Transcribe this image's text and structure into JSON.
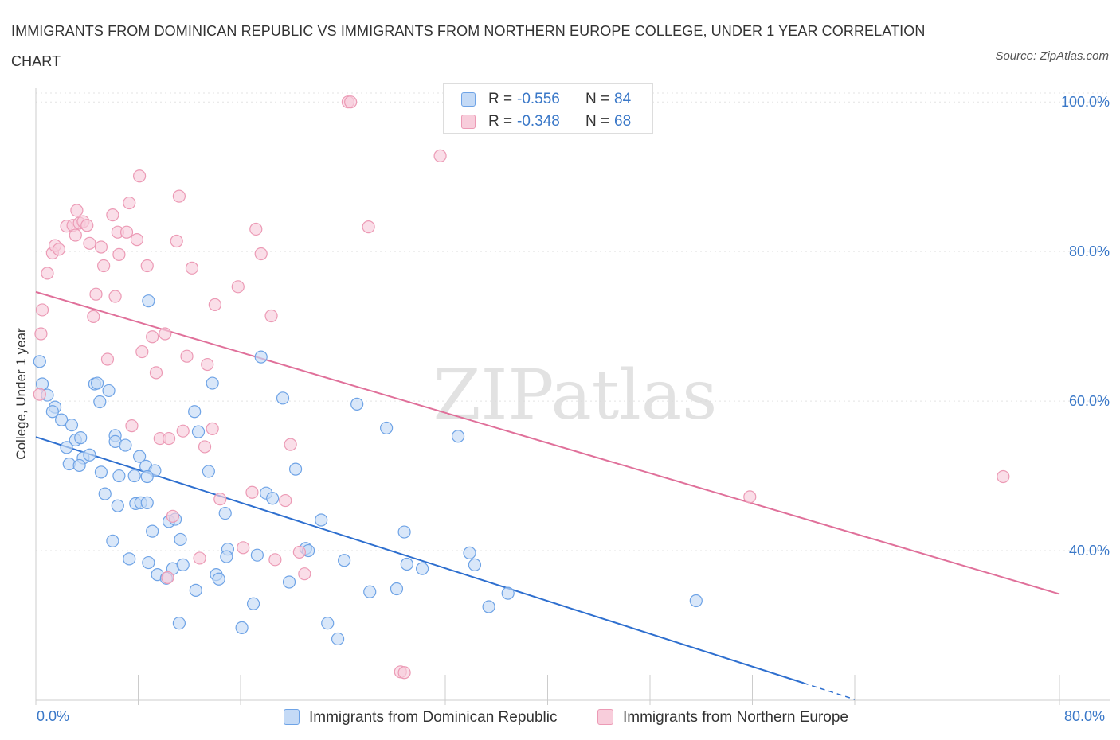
{
  "chart_data": {
    "type": "scatter",
    "title": "IMMIGRANTS FROM DOMINICAN REPUBLIC VS IMMIGRANTS FROM NORTHERN EUROPE COLLEGE, UNDER 1 YEAR CORRELATION CHART",
    "source": "Source: ZipAtlas.com",
    "watermark": "ZIPatlas",
    "ylabel": "College, Under 1 year",
    "xlabel": "",
    "xlim": [
      0,
      80
    ],
    "ylim": [
      20,
      103
    ],
    "x_tick_labels": [
      "0.0%",
      "80.0%"
    ],
    "y_ticks": [
      {
        "value": 40,
        "label": "40.0%"
      },
      {
        "value": 60,
        "label": "60.0%"
      },
      {
        "value": 80,
        "label": "80.0%"
      },
      {
        "value": 100,
        "label": "100.0%"
      }
    ],
    "grid": true,
    "legend_position": "bottom-center",
    "series": [
      {
        "name": "Immigrants from Dominican Republic",
        "color": "#6ea3e6",
        "fill": "#c4daf6",
        "line_color": "#2e6fcf",
        "R": "-0.556",
        "N": "84",
        "trend": {
          "x0": 0,
          "y0": 55.2,
          "x1": 60,
          "y1": 22.3,
          "dash_to": 64
        },
        "points": [
          [
            0.3,
            65.3
          ],
          [
            0.5,
            62.3
          ],
          [
            0.9,
            60.8
          ],
          [
            1.5,
            59.2
          ],
          [
            1.3,
            58.6
          ],
          [
            2.0,
            57.5
          ],
          [
            2.8,
            56.8
          ],
          [
            3.1,
            54.8
          ],
          [
            3.5,
            55.1
          ],
          [
            2.4,
            53.8
          ],
          [
            3.7,
            52.4
          ],
          [
            4.2,
            52.8
          ],
          [
            2.6,
            51.6
          ],
          [
            3.4,
            51.4
          ],
          [
            4.6,
            62.3
          ],
          [
            4.8,
            62.4
          ],
          [
            5.0,
            59.9
          ],
          [
            5.7,
            61.4
          ],
          [
            5.1,
            50.5
          ],
          [
            6.2,
            55.4
          ],
          [
            6.2,
            54.6
          ],
          [
            6.5,
            50.0
          ],
          [
            7.0,
            54.1
          ],
          [
            8.1,
            52.6
          ],
          [
            8.6,
            51.3
          ],
          [
            9.3,
            50.7
          ],
          [
            8.7,
            49.9
          ],
          [
            5.4,
            47.6
          ],
          [
            6.4,
            46.0
          ],
          [
            7.7,
            50.0
          ],
          [
            7.8,
            46.3
          ],
          [
            8.2,
            46.4
          ],
          [
            8.7,
            46.4
          ],
          [
            9.1,
            42.6
          ],
          [
            10.4,
            43.9
          ],
          [
            10.9,
            44.2
          ],
          [
            11.3,
            41.5
          ],
          [
            12.4,
            58.6
          ],
          [
            12.7,
            55.9
          ],
          [
            13.5,
            50.6
          ],
          [
            13.8,
            62.4
          ],
          [
            14.8,
            45.0
          ],
          [
            15.0,
            40.2
          ],
          [
            14.9,
            39.2
          ],
          [
            6.0,
            41.3
          ],
          [
            7.3,
            38.9
          ],
          [
            8.8,
            38.4
          ],
          [
            9.5,
            36.8
          ],
          [
            10.2,
            36.3
          ],
          [
            10.7,
            37.6
          ],
          [
            11.5,
            38.1
          ],
          [
            12.5,
            34.7
          ],
          [
            11.2,
            30.3
          ],
          [
            14.1,
            36.8
          ],
          [
            14.3,
            36.2
          ],
          [
            16.1,
            29.7
          ],
          [
            17.0,
            32.9
          ],
          [
            17.3,
            39.4
          ],
          [
            18.0,
            47.7
          ],
          [
            18.5,
            47.0
          ],
          [
            19.3,
            60.4
          ],
          [
            19.8,
            35.8
          ],
          [
            20.3,
            50.9
          ],
          [
            21.1,
            40.3
          ],
          [
            21.3,
            40.0
          ],
          [
            22.3,
            44.1
          ],
          [
            22.8,
            30.3
          ],
          [
            23.6,
            28.2
          ],
          [
            24.1,
            38.7
          ],
          [
            25.1,
            59.6
          ],
          [
            26.1,
            34.5
          ],
          [
            27.4,
            56.4
          ],
          [
            28.2,
            34.9
          ],
          [
            28.8,
            42.5
          ],
          [
            29.0,
            38.2
          ],
          [
            30.2,
            37.6
          ],
          [
            33.0,
            55.3
          ],
          [
            33.9,
            39.7
          ],
          [
            34.3,
            38.1
          ],
          [
            35.4,
            32.5
          ],
          [
            36.9,
            34.3
          ],
          [
            51.6,
            33.3
          ],
          [
            8.8,
            73.4
          ],
          [
            17.6,
            65.9
          ]
        ]
      },
      {
        "name": "Immigrants from Northern Europe",
        "color": "#ec9ab5",
        "fill": "#f8cddb",
        "line_color": "#e0709a",
        "R": "-0.348",
        "N": "68",
        "trend": {
          "x0": 0,
          "y0": 74.6,
          "x1": 80,
          "y1": 34.2
        },
        "points": [
          [
            0.3,
            60.9
          ],
          [
            0.4,
            69.0
          ],
          [
            0.5,
            72.2
          ],
          [
            0.9,
            77.1
          ],
          [
            1.3,
            79.8
          ],
          [
            1.5,
            80.8
          ],
          [
            1.8,
            80.3
          ],
          [
            2.4,
            83.4
          ],
          [
            2.9,
            83.5
          ],
          [
            3.1,
            82.2
          ],
          [
            3.2,
            85.5
          ],
          [
            3.4,
            83.8
          ],
          [
            3.7,
            84.0
          ],
          [
            4.0,
            83.5
          ],
          [
            4.2,
            81.1
          ],
          [
            4.5,
            71.3
          ],
          [
            4.7,
            74.3
          ],
          [
            5.1,
            80.6
          ],
          [
            5.3,
            78.1
          ],
          [
            5.6,
            65.6
          ],
          [
            6.0,
            84.9
          ],
          [
            6.2,
            74.0
          ],
          [
            6.4,
            82.6
          ],
          [
            6.5,
            79.6
          ],
          [
            7.1,
            82.6
          ],
          [
            7.3,
            86.5
          ],
          [
            7.5,
            56.7
          ],
          [
            7.9,
            81.6
          ],
          [
            8.1,
            90.1
          ],
          [
            8.3,
            66.6
          ],
          [
            8.7,
            78.1
          ],
          [
            9.1,
            68.6
          ],
          [
            9.4,
            63.8
          ],
          [
            9.7,
            55.0
          ],
          [
            10.1,
            69.0
          ],
          [
            10.3,
            36.4
          ],
          [
            10.4,
            55.0
          ],
          [
            10.7,
            44.6
          ],
          [
            11.0,
            81.4
          ],
          [
            11.2,
            87.4
          ],
          [
            11.5,
            56.0
          ],
          [
            11.8,
            66.0
          ],
          [
            12.2,
            77.8
          ],
          [
            12.8,
            39.0
          ],
          [
            13.2,
            53.9
          ],
          [
            13.4,
            64.9
          ],
          [
            13.8,
            56.3
          ],
          [
            14.0,
            72.9
          ],
          [
            14.4,
            46.9
          ],
          [
            15.8,
            75.3
          ],
          [
            16.2,
            40.4
          ],
          [
            16.9,
            47.8
          ],
          [
            17.2,
            83.0
          ],
          [
            17.6,
            79.7
          ],
          [
            18.4,
            71.4
          ],
          [
            18.7,
            38.8
          ],
          [
            19.5,
            46.7
          ],
          [
            19.9,
            54.2
          ],
          [
            20.6,
            39.8
          ],
          [
            21.0,
            36.9
          ],
          [
            24.4,
            100.0
          ],
          [
            24.6,
            100.0
          ],
          [
            26.0,
            83.3
          ],
          [
            28.5,
            23.8
          ],
          [
            28.8,
            23.7
          ],
          [
            31.6,
            92.8
          ],
          [
            55.8,
            47.2
          ],
          [
            75.6,
            49.9
          ]
        ]
      }
    ]
  }
}
